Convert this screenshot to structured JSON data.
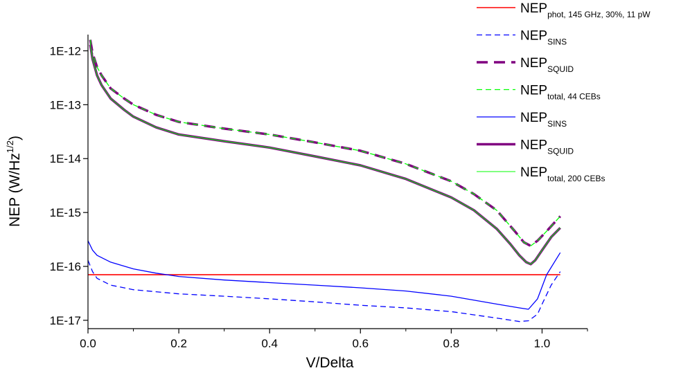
{
  "chart_data": {
    "type": "line",
    "xlabel": "V/Delta",
    "ylabel": "NEP (W/Hz",
    "ylabel_sup": "1/2",
    "ylabel_close": ")",
    "y_scale": "log",
    "xlim": [
      0,
      1.1
    ],
    "ylim": [
      7e-18,
      2e-12
    ],
    "x_ticks": [
      0.0,
      0.2,
      0.4,
      0.6,
      0.8,
      1.0
    ],
    "x_tick_labels": [
      "0.0",
      "0.2",
      "0.4",
      "0.6",
      "0.8",
      "1.0"
    ],
    "y_ticks": [
      1e-17,
      1e-16,
      1e-15,
      1e-14,
      1e-13,
      1e-12
    ],
    "y_tick_labels": [
      "1E-17",
      "1E-16",
      "1E-15",
      "1E-14",
      "1E-13",
      "1E-12"
    ],
    "legend_position": "top-right",
    "series": [
      {
        "name": "NEP",
        "sub": "phot, 145 GHz, 30%, 11 pW",
        "color": "#ff0000",
        "dash": "solid",
        "width": 1.6,
        "x": [
          0.0,
          1.04
        ],
        "y": [
          7e-17,
          7e-17
        ]
      },
      {
        "name": "NEP",
        "sub": "SINS",
        "color": "#0000ff",
        "dash": "dashed",
        "width": 1.3,
        "x": [
          0.0,
          0.01,
          0.02,
          0.05,
          0.1,
          0.2,
          0.3,
          0.4,
          0.5,
          0.6,
          0.7,
          0.8,
          0.9,
          0.95,
          0.97,
          0.99,
          1.0,
          1.02,
          1.04
        ],
        "y": [
          1.3e-16,
          8e-17,
          6e-17,
          4.5e-17,
          3.7e-17,
          3.1e-17,
          2.8e-17,
          2.5e-17,
          2.2e-17,
          1.9e-17,
          1.7e-17,
          1.45e-17,
          1.1e-17,
          9.5e-18,
          9.8e-18,
          1.3e-17,
          2e-17,
          4.5e-17,
          8e-17
        ]
      },
      {
        "name": "NEP",
        "sub": "SQUID",
        "color": "#800080",
        "dash": "dashed",
        "width": 3.5,
        "x": [
          0.005,
          0.01,
          0.02,
          0.03,
          0.05,
          0.08,
          0.1,
          0.15,
          0.2,
          0.3,
          0.4,
          0.5,
          0.6,
          0.7,
          0.8,
          0.85,
          0.9,
          0.94,
          0.96,
          0.975,
          0.99,
          1.01,
          1.04
        ],
        "y": [
          1.6e-12,
          9e-13,
          5e-13,
          3.5e-13,
          2e-13,
          1.3e-13,
          1e-13,
          6.5e-14,
          4.8e-14,
          3.6e-14,
          2.8e-14,
          2e-14,
          1.4e-14,
          8e-15,
          3.8e-15,
          2.2e-15,
          1.1e-15,
          4.5e-16,
          2.8e-16,
          2.4e-16,
          3e-16,
          4.5e-16,
          8.5e-16
        ]
      },
      {
        "name": "NEP",
        "sub": "total, 44 CEBs",
        "color": "#00ff00",
        "dash": "dashed",
        "width": 1.3,
        "x": [
          0.005,
          0.01,
          0.02,
          0.03,
          0.05,
          0.08,
          0.1,
          0.15,
          0.2,
          0.3,
          0.4,
          0.5,
          0.6,
          0.7,
          0.8,
          0.85,
          0.9,
          0.94,
          0.96,
          0.975,
          0.99,
          1.01,
          1.04
        ],
        "y": [
          1.6e-12,
          9e-13,
          5e-13,
          3.5e-13,
          2e-13,
          1.3e-13,
          1e-13,
          6.5e-14,
          4.8e-14,
          3.6e-14,
          2.8e-14,
          2e-14,
          1.4e-14,
          8e-15,
          3.8e-15,
          2.2e-15,
          1.1e-15,
          4.5e-16,
          2.8e-16,
          2.4e-16,
          3e-16,
          4.5e-16,
          8.5e-16
        ]
      },
      {
        "name": "NEP",
        "sub": "SINS",
        "color": "#0000ff",
        "dash": "solid",
        "width": 1.3,
        "x": [
          0.0,
          0.01,
          0.02,
          0.05,
          0.1,
          0.15,
          0.2,
          0.3,
          0.4,
          0.5,
          0.6,
          0.7,
          0.8,
          0.9,
          0.95,
          0.97,
          0.99,
          1.01,
          1.04
        ],
        "y": [
          3e-16,
          2e-16,
          1.6e-16,
          1.2e-16,
          9e-17,
          7.5e-17,
          6.5e-17,
          5.6e-17,
          5e-17,
          4.5e-17,
          4e-17,
          3.5e-17,
          2.8e-17,
          2e-17,
          1.7e-17,
          1.6e-17,
          2.5e-17,
          7e-17,
          1.8e-16
        ]
      },
      {
        "name": "NEP",
        "sub": "SQUID",
        "color": "#800080",
        "dash": "solid",
        "width": 3.5,
        "x": [
          0.005,
          0.01,
          0.02,
          0.03,
          0.05,
          0.08,
          0.1,
          0.15,
          0.2,
          0.3,
          0.4,
          0.5,
          0.6,
          0.7,
          0.8,
          0.85,
          0.9,
          0.93,
          0.95,
          0.965,
          0.975,
          0.985,
          1.0,
          1.02,
          1.04
        ],
        "y": [
          1.3e-12,
          7e-13,
          3.5e-13,
          2.3e-13,
          1.3e-13,
          8e-14,
          6e-14,
          3.8e-14,
          2.8e-14,
          2.1e-14,
          1.6e-14,
          1.1e-14,
          7.5e-15,
          4.2e-15,
          1.9e-15,
          1.1e-15,
          5e-16,
          2.6e-16,
          1.6e-16,
          1.2e-16,
          1.1e-16,
          1.3e-16,
          2e-16,
          3.5e-16,
          5.2e-16
        ]
      },
      {
        "name": "NEP",
        "sub": "total, 200 CEBs",
        "color": "#00ff00",
        "dash": "solid",
        "width": 1.1,
        "x": [
          0.005,
          0.01,
          0.02,
          0.03,
          0.05,
          0.08,
          0.1,
          0.15,
          0.2,
          0.3,
          0.4,
          0.5,
          0.6,
          0.7,
          0.8,
          0.85,
          0.9,
          0.93,
          0.95,
          0.965,
          0.975,
          0.985,
          1.0,
          1.02,
          1.04
        ],
        "y": [
          1.3e-12,
          7e-13,
          3.5e-13,
          2.3e-13,
          1.3e-13,
          8e-14,
          6e-14,
          3.8e-14,
          2.8e-14,
          2.1e-14,
          1.6e-14,
          1.1e-14,
          7.5e-15,
          4.2e-15,
          1.9e-15,
          1.1e-15,
          5e-16,
          2.6e-16,
          1.6e-16,
          1.2e-16,
          1.1e-16,
          1.3e-16,
          2e-16,
          3.5e-16,
          5.2e-16
        ]
      }
    ]
  }
}
